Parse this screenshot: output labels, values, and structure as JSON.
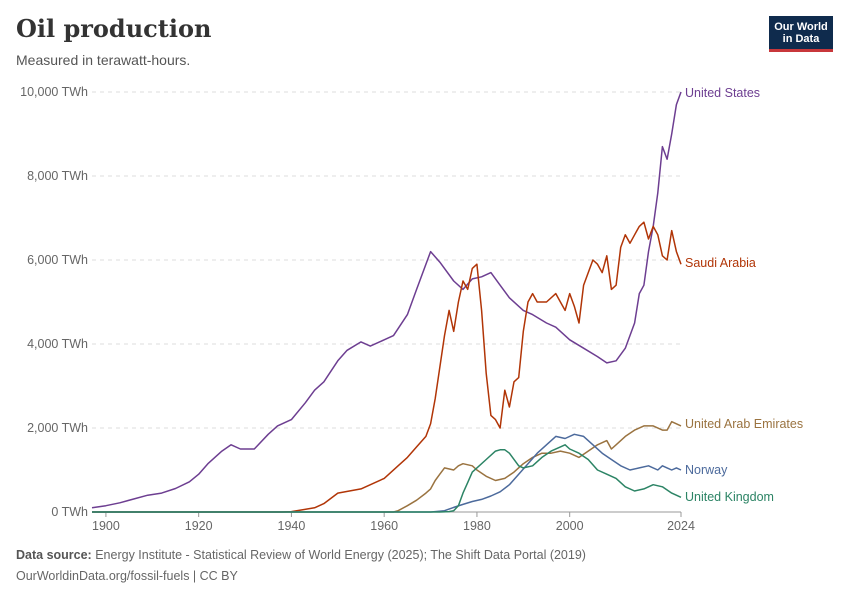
{
  "header": {
    "title": "Oil production",
    "subtitle": "Measured in terawatt-hours.",
    "logo_line1": "Our World",
    "logo_line2": "in Data"
  },
  "footer": {
    "source_label": "Data source:",
    "source_text": "Energy Institute - Statistical Review of World Energy (2025); The Shift Data Portal (2019)",
    "url": "OurWorldinData.org/fossil-fuels | CC BY"
  },
  "chart_data": {
    "type": "line",
    "xlabel": "",
    "ylabel": "",
    "xlim": [
      1897,
      2024
    ],
    "ylim": [
      0,
      10000
    ],
    "y_ticks": [
      0,
      2000,
      4000,
      6000,
      8000,
      10000
    ],
    "y_tick_labels": [
      "0 TWh",
      "2,000 TWh",
      "4,000 TWh",
      "6,000 TWh",
      "8,000 TWh",
      "10,000 TWh"
    ],
    "x_ticks": [
      1900,
      1920,
      1940,
      1960,
      1980,
      2000,
      2024
    ],
    "x_tick_labels": [
      "1900",
      "1920",
      "1940",
      "1960",
      "1980",
      "2000",
      "2024"
    ],
    "grid": "horizontal dashed",
    "legend": "line-end labels on right",
    "series": [
      {
        "name": "United States",
        "color": "#6d3e91",
        "x": [
          1897,
          1900,
          1903,
          1906,
          1909,
          1912,
          1915,
          1918,
          1920,
          1922,
          1925,
          1927,
          1929,
          1932,
          1935,
          1937,
          1940,
          1943,
          1945,
          1947,
          1950,
          1952,
          1955,
          1957,
          1960,
          1962,
          1965,
          1967,
          1970,
          1972,
          1975,
          1977,
          1979,
          1981,
          1983,
          1985,
          1987,
          1990,
          1992,
          1995,
          1997,
          2000,
          2003,
          2006,
          2008,
          2010,
          2012,
          2014,
          2015,
          2016,
          2017,
          2018,
          2019,
          2020,
          2021,
          2022,
          2023,
          2024
        ],
        "y": [
          100,
          150,
          220,
          310,
          400,
          450,
          560,
          720,
          900,
          1150,
          1450,
          1600,
          1500,
          1500,
          1850,
          2050,
          2200,
          2600,
          2900,
          3100,
          3600,
          3850,
          4050,
          3950,
          4100,
          4200,
          4700,
          5300,
          6200,
          5950,
          5500,
          5300,
          5550,
          5600,
          5700,
          5400,
          5100,
          4800,
          4700,
          4500,
          4400,
          4100,
          3900,
          3700,
          3550,
          3600,
          3900,
          4500,
          5200,
          5400,
          6200,
          6800,
          7600,
          8700,
          8400,
          9000,
          9700,
          10000
        ]
      },
      {
        "name": "Saudi Arabia",
        "color": "#b13507",
        "x": [
          1897,
          1938,
          1940,
          1945,
          1947,
          1950,
          1955,
          1960,
          1963,
          1965,
          1967,
          1969,
          1970,
          1971,
          1973,
          1974,
          1975,
          1976,
          1977,
          1978,
          1979,
          1980,
          1981,
          1982,
          1983,
          1984,
          1985,
          1986,
          1987,
          1988,
          1989,
          1990,
          1991,
          1992,
          1993,
          1995,
          1997,
          1998,
          1999,
          2000,
          2001,
          2002,
          2003,
          2005,
          2006,
          2007,
          2008,
          2009,
          2010,
          2011,
          2012,
          2013,
          2014,
          2015,
          2016,
          2017,
          2018,
          2019,
          2020,
          2021,
          2022,
          2023,
          2024
        ],
        "y": [
          0,
          0,
          10,
          100,
          200,
          450,
          550,
          800,
          1100,
          1300,
          1550,
          1800,
          2100,
          2700,
          4200,
          4800,
          4300,
          5000,
          5500,
          5300,
          5800,
          5900,
          4800,
          3300,
          2300,
          2200,
          2000,
          2900,
          2500,
          3100,
          3200,
          4300,
          5000,
          5200,
          5000,
          5000,
          5200,
          5000,
          4800,
          5200,
          4900,
          4500,
          5400,
          6000,
          5900,
          5700,
          6100,
          5300,
          5400,
          6300,
          6600,
          6400,
          6600,
          6800,
          6900,
          6500,
          6800,
          6600,
          6100,
          6000,
          6700,
          6200,
          5900
        ]
      },
      {
        "name": "United Arab Emirates",
        "color": "#9a7340",
        "x": [
          1897,
          1962,
          1963,
          1965,
          1967,
          1969,
          1970,
          1971,
          1972,
          1973,
          1975,
          1976,
          1977,
          1979,
          1980,
          1982,
          1984,
          1986,
          1988,
          1990,
          1992,
          1994,
          1996,
          1998,
          2000,
          2002,
          2004,
          2006,
          2008,
          2009,
          2010,
          2012,
          2014,
          2016,
          2018,
          2020,
          2021,
          2022,
          2023,
          2024
        ],
        "y": [
          0,
          0,
          30,
          150,
          280,
          450,
          550,
          750,
          900,
          1050,
          1000,
          1100,
          1150,
          1100,
          1000,
          850,
          750,
          800,
          950,
          1150,
          1300,
          1400,
          1400,
          1450,
          1400,
          1300,
          1450,
          1600,
          1700,
          1500,
          1600,
          1800,
          1950,
          2050,
          2050,
          1950,
          1950,
          2150,
          2100,
          2050
        ]
      },
      {
        "name": "Norway",
        "color": "#4c6a9c",
        "x": [
          1897,
          1970,
          1971,
          1973,
          1975,
          1977,
          1979,
          1981,
          1983,
          1985,
          1987,
          1989,
          1991,
          1993,
          1995,
          1997,
          1999,
          2001,
          2003,
          2005,
          2007,
          2009,
          2011,
          2013,
          2015,
          2017,
          2019,
          2020,
          2021,
          2022,
          2023,
          2024
        ],
        "y": [
          0,
          0,
          10,
          30,
          110,
          180,
          250,
          300,
          380,
          480,
          650,
          900,
          1150,
          1400,
          1600,
          1800,
          1750,
          1850,
          1800,
          1600,
          1400,
          1250,
          1100,
          1000,
          1050,
          1100,
          1000,
          1100,
          1050,
          1000,
          1050,
          1000
        ]
      },
      {
        "name": "United Kingdom",
        "color": "#2c8465",
        "x": [
          1897,
          1972,
          1974,
          1975,
          1976,
          1977,
          1978,
          1979,
          1980,
          1982,
          1984,
          1985,
          1986,
          1987,
          1989,
          1990,
          1992,
          1994,
          1996,
          1998,
          1999,
          2000,
          2002,
          2004,
          2006,
          2008,
          2010,
          2012,
          2014,
          2016,
          2018,
          2020,
          2022,
          2024
        ],
        "y": [
          0,
          0,
          10,
          30,
          150,
          450,
          700,
          950,
          1050,
          1250,
          1450,
          1480,
          1480,
          1400,
          1100,
          1050,
          1100,
          1300,
          1450,
          1550,
          1600,
          1500,
          1400,
          1250,
          1000,
          900,
          800,
          600,
          500,
          550,
          650,
          600,
          450,
          350
        ]
      }
    ]
  }
}
